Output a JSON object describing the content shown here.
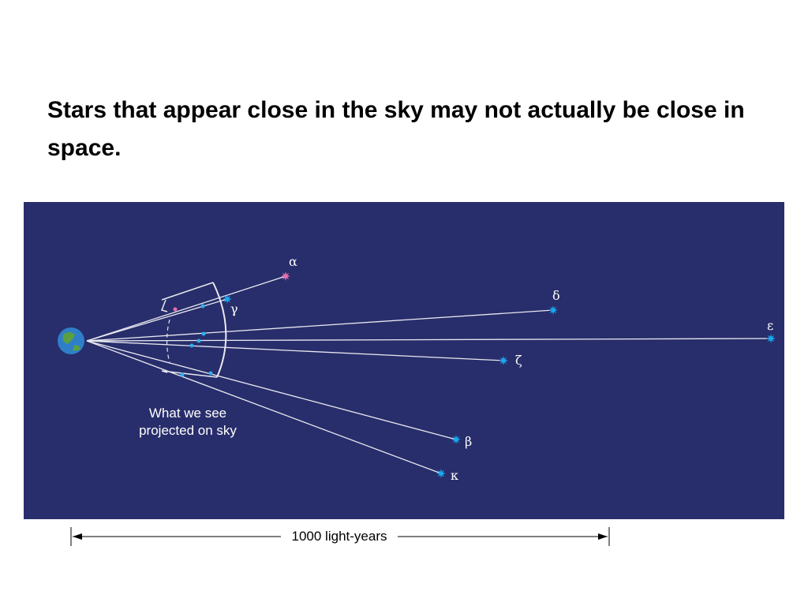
{
  "slide": {
    "title": "Stars that appear close in the sky may not actually be close in space."
  },
  "diagram": {
    "stars": [
      {
        "label": "α"
      },
      {
        "label": "γ"
      },
      {
        "label": "δ"
      },
      {
        "label": "ε"
      },
      {
        "label": "ζ"
      },
      {
        "label": "β"
      },
      {
        "label": "κ"
      }
    ],
    "caption": [
      "What we see",
      "projected on sky"
    ],
    "scale_label": "1000 light-years"
  }
}
